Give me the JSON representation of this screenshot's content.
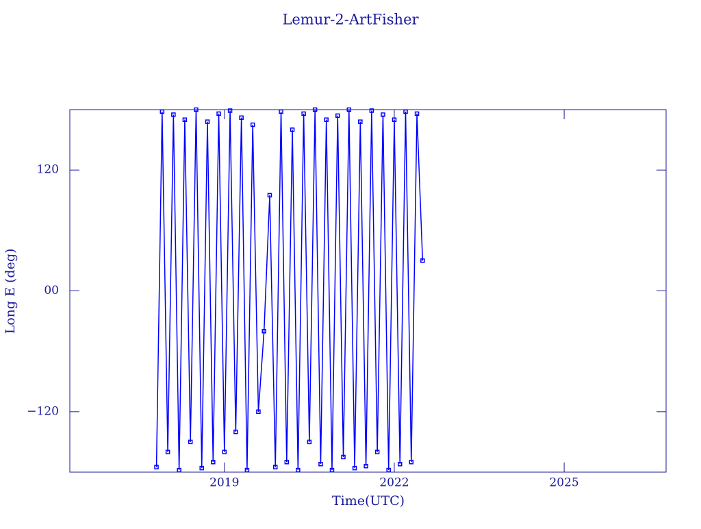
{
  "chart_data": {
    "type": "line",
    "title": "Lemur-2-ArtFisher",
    "xlabel": "Time(UTC)",
    "ylabel": "Long E (deg)",
    "x": [
      2017.8,
      2017.9,
      2018.0,
      2018.1,
      2018.2,
      2018.3,
      2018.4,
      2018.5,
      2018.6,
      2018.7,
      2018.8,
      2018.9,
      2019.0,
      2019.1,
      2019.2,
      2019.3,
      2019.4,
      2019.5,
      2019.6,
      2019.7,
      2019.8,
      2019.9,
      2020.0,
      2020.1,
      2020.2,
      2020.3,
      2020.4,
      2020.5,
      2020.6,
      2020.7,
      2020.8,
      2020.9,
      2021.0,
      2021.1,
      2021.2,
      2021.3,
      2021.4,
      2021.5,
      2021.6,
      2021.7,
      2021.8,
      2021.9,
      2022.0,
      2022.1,
      2022.2,
      2022.3,
      2022.4,
      2022.5
    ],
    "series": [
      {
        "name": "Long E",
        "color": "#0000ff",
        "values": [
          -175,
          178,
          -160,
          175,
          -178,
          170,
          -150,
          180,
          -176,
          168,
          -170,
          176,
          -160,
          179,
          -140,
          172,
          -178,
          165,
          -120,
          -40,
          95,
          -175,
          178,
          -170,
          160,
          -178,
          176,
          -150,
          180,
          -172,
          170,
          -178,
          174,
          -165,
          180,
          -176,
          168,
          -174,
          179,
          -160,
          175,
          -178,
          170,
          -172,
          178,
          -170,
          176,
          30
        ]
      }
    ],
    "xlim": [
      2016.27,
      2026.8
    ],
    "ylim": [
      -180,
      180
    ],
    "xticks": [
      2019,
      2022,
      2025
    ],
    "yticks": [
      {
        "value": -120,
        "label": "−120"
      },
      {
        "value": 0,
        "label": "00"
      },
      120
    ]
  }
}
